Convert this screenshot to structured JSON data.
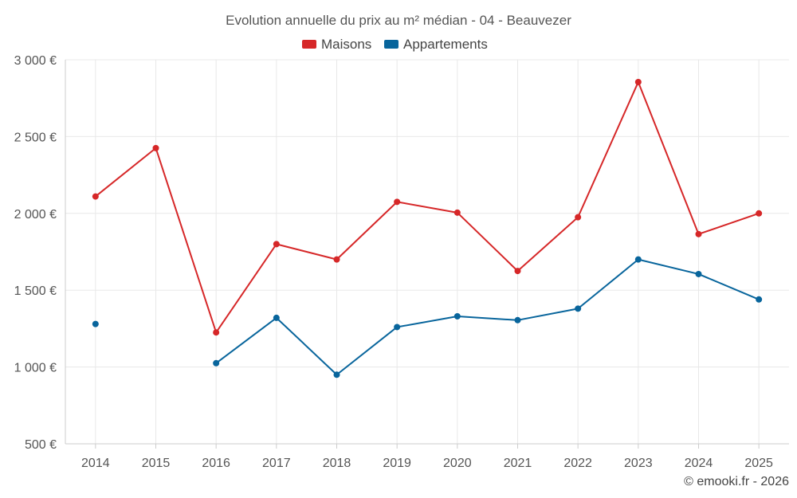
{
  "chart_data": {
    "type": "line",
    "title": "Evolution annuelle du prix au m² médian - 04 - Beauvezer",
    "categories": [
      "2014",
      "2015",
      "2016",
      "2017",
      "2018",
      "2019",
      "2020",
      "2021",
      "2022",
      "2023",
      "2024",
      "2025"
    ],
    "series": [
      {
        "name": "Maisons",
        "color": "#d62728",
        "values": [
          2110,
          2425,
          1225,
          1800,
          1700,
          2075,
          2005,
          1625,
          1975,
          2855,
          1865,
          2000
        ]
      },
      {
        "name": "Appartements",
        "color": "#08659c",
        "values": [
          1280,
          null,
          1025,
          1320,
          950,
          1260,
          1330,
          1305,
          1380,
          1700,
          1605,
          1440
        ]
      }
    ],
    "ylim": [
      500,
      3000
    ],
    "yticks": [
      500,
      1000,
      1500,
      2000,
      2500,
      3000
    ],
    "ytick_labels": [
      "500 €",
      "1 000 €",
      "1 500 €",
      "2 000 €",
      "2 500 €",
      "3 000 €"
    ],
    "xlabel": "",
    "ylabel": "",
    "grid": true,
    "legend_position": "top-center"
  },
  "credit": "© emooki.fr - 2026"
}
